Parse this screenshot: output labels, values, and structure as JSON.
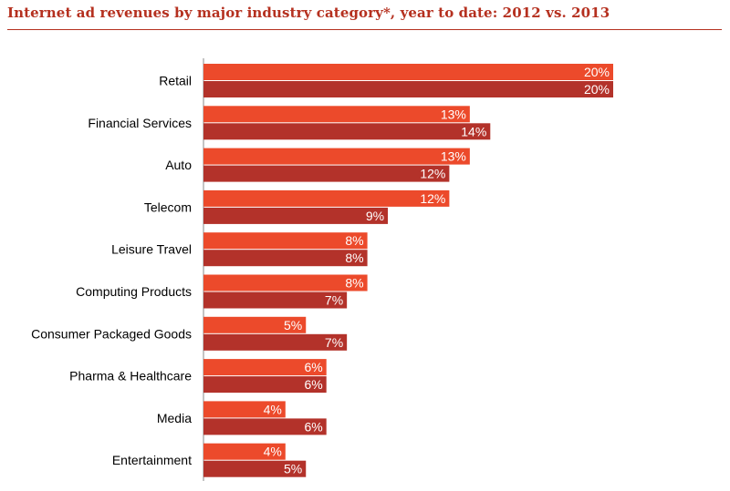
{
  "title": "Internet ad revenues by major industry category*, year to date: 2012 vs. 2013",
  "colors": {
    "title": "#b5301f",
    "series_2012": "#ec4a2b",
    "series_2013": "#b3322a",
    "axis": "#888888"
  },
  "chart_data": {
    "type": "bar",
    "orientation": "horizontal",
    "title": "Internet ad revenues by major industry category*, year to date: 2012 vs. 2013",
    "xlabel": "",
    "ylabel": "",
    "xlim": [
      0,
      20
    ],
    "grid": false,
    "legend": "none",
    "categories": [
      "Retail",
      "Financial Services",
      "Auto",
      "Telecom",
      "Leisure Travel",
      "Computing Products",
      "Consumer Packaged Goods",
      "Pharma & Healthcare",
      "Media",
      "Entertainment"
    ],
    "series": [
      {
        "color": "#ec4a2b",
        "values": [
          20,
          13,
          13,
          12,
          8,
          8,
          5,
          6,
          4,
          4
        ],
        "labels": [
          "20%",
          "13%",
          "13%",
          "12%",
          "8%",
          "8%",
          "5%",
          "6%",
          "4%",
          "4%"
        ]
      },
      {
        "color": "#b3322a",
        "values": [
          20,
          14,
          12,
          9,
          8,
          7,
          7,
          6,
          6,
          5
        ],
        "labels": [
          "20%",
          "14%",
          "12%",
          "9%",
          "8%",
          "7%",
          "7%",
          "6%",
          "6%",
          "5%"
        ]
      }
    ]
  }
}
